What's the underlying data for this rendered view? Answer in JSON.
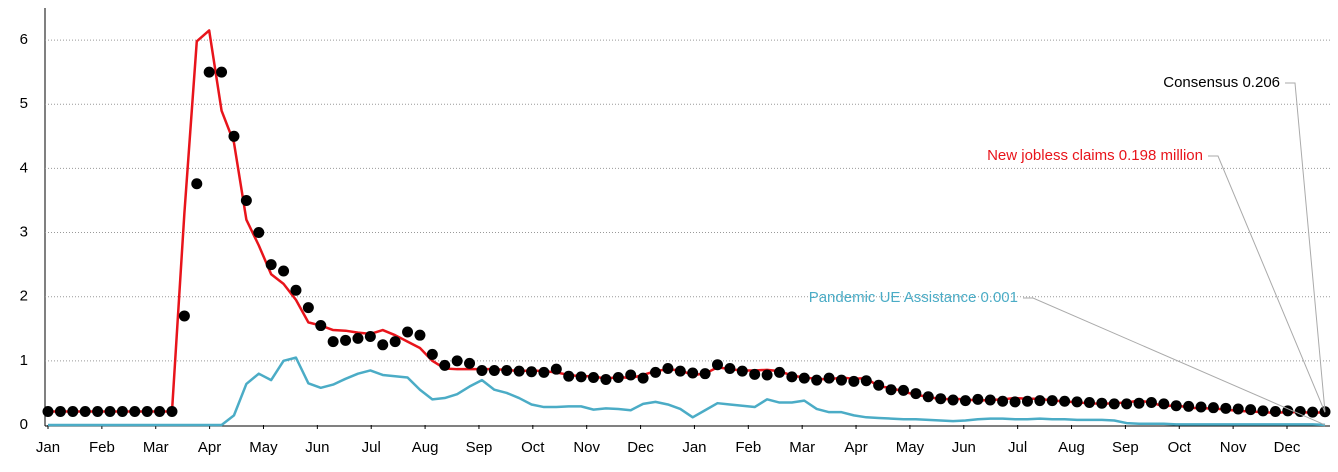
{
  "chart_data": {
    "type": "line",
    "month_labels": [
      "Jan",
      "Feb",
      "Mar",
      "Apr",
      "May",
      "Jun",
      "Jul",
      "Aug",
      "Sep",
      "Oct",
      "Nov",
      "Dec",
      "Jan",
      "Feb",
      "Mar",
      "Apr",
      "May",
      "Jun",
      "Jul",
      "Aug",
      "Sep",
      "Oct",
      "Nov",
      "Dec"
    ],
    "ylim": [
      0,
      6.5
    ],
    "yticks": [
      0,
      1,
      2,
      3,
      4,
      5,
      6
    ],
    "grid": true,
    "series": [
      {
        "style": "dots",
        "color": "#000000",
        "values": [
          0.21,
          0.21,
          0.21,
          0.21,
          0.21,
          0.21,
          0.21,
          0.21,
          0.21,
          0.21,
          0.21,
          1.7,
          3.76,
          5.5,
          5.5,
          4.5,
          3.5,
          3.0,
          2.5,
          2.4,
          2.1,
          1.83,
          1.55,
          1.3,
          1.32,
          1.35,
          1.38,
          1.25,
          1.3,
          1.45,
          1.4,
          1.1,
          0.93,
          1.0,
          0.96,
          0.85,
          0.85,
          0.85,
          0.84,
          0.83,
          0.82,
          0.87,
          0.76,
          0.75,
          0.74,
          0.71,
          0.74,
          0.78,
          0.73,
          0.82,
          0.88,
          0.84,
          0.81,
          0.8,
          0.94,
          0.88,
          0.84,
          0.79,
          0.78,
          0.82,
          0.75,
          0.73,
          0.7,
          0.73,
          0.7,
          0.68,
          0.69,
          0.62,
          0.55,
          0.54,
          0.49,
          0.44,
          0.41,
          0.39,
          0.38,
          0.4,
          0.39,
          0.37,
          0.36,
          0.37,
          0.38,
          0.38,
          0.37,
          0.36,
          0.35,
          0.34,
          0.33,
          0.33,
          0.34,
          0.35,
          0.33,
          0.3,
          0.29,
          0.28,
          0.27,
          0.26,
          0.25,
          0.24,
          0.22,
          0.21,
          0.22,
          0.21,
          0.2,
          0.206
        ]
      },
      {
        "style": "line",
        "color": "#e8141b",
        "values": [
          0.21,
          0.21,
          0.21,
          0.21,
          0.21,
          0.21,
          0.21,
          0.21,
          0.21,
          0.21,
          0.21,
          3.3,
          5.98,
          6.15,
          4.9,
          4.4,
          3.2,
          2.8,
          2.35,
          2.2,
          1.95,
          1.6,
          1.55,
          1.48,
          1.47,
          1.44,
          1.42,
          1.48,
          1.4,
          1.3,
          1.2,
          1.0,
          0.88,
          0.87,
          0.87,
          0.87,
          0.87,
          0.86,
          0.84,
          0.85,
          0.84,
          0.82,
          0.78,
          0.76,
          0.76,
          0.72,
          0.75,
          0.73,
          0.78,
          0.84,
          0.87,
          0.85,
          0.78,
          0.8,
          0.9,
          0.87,
          0.85,
          0.85,
          0.86,
          0.84,
          0.77,
          0.74,
          0.72,
          0.71,
          0.74,
          0.72,
          0.73,
          0.6,
          0.58,
          0.52,
          0.47,
          0.44,
          0.4,
          0.41,
          0.4,
          0.38,
          0.39,
          0.4,
          0.42,
          0.41,
          0.41,
          0.38,
          0.37,
          0.35,
          0.34,
          0.33,
          0.34,
          0.35,
          0.38,
          0.35,
          0.29,
          0.31,
          0.27,
          0.26,
          0.26,
          0.24,
          0.22,
          0.21,
          0.2,
          0.19,
          0.2,
          0.2,
          0.19,
          0.198
        ]
      },
      {
        "style": "line",
        "color": "#4bacc6",
        "values": [
          0,
          0,
          0,
          0,
          0,
          0,
          0,
          0,
          0,
          0,
          0,
          0,
          0,
          0,
          0,
          0.15,
          0.64,
          0.8,
          0.7,
          1.0,
          1.05,
          0.65,
          0.58,
          0.63,
          0.72,
          0.8,
          0.85,
          0.78,
          0.76,
          0.74,
          0.55,
          0.4,
          0.42,
          0.48,
          0.6,
          0.7,
          0.55,
          0.5,
          0.42,
          0.32,
          0.28,
          0.28,
          0.29,
          0.29,
          0.24,
          0.26,
          0.25,
          0.23,
          0.33,
          0.36,
          0.32,
          0.25,
          0.12,
          0.23,
          0.34,
          0.32,
          0.3,
          0.28,
          0.4,
          0.35,
          0.35,
          0.38,
          0.25,
          0.2,
          0.2,
          0.15,
          0.12,
          0.11,
          0.1,
          0.09,
          0.09,
          0.08,
          0.07,
          0.06,
          0.07,
          0.09,
          0.1,
          0.1,
          0.09,
          0.09,
          0.1,
          0.09,
          0.09,
          0.08,
          0.08,
          0.08,
          0.07,
          0.03,
          0.02,
          0.02,
          0.02,
          0.01,
          0.01,
          0.01,
          0.01,
          0.01,
          0.01,
          0.01,
          0.01,
          0.01,
          0.01,
          0.01,
          0.01,
          0.001
        ]
      }
    ],
    "annotations": [
      "Consensus 0.206",
      "New jobless claims 0.198 million",
      "Pandemic UE Assistance 0.001"
    ]
  }
}
